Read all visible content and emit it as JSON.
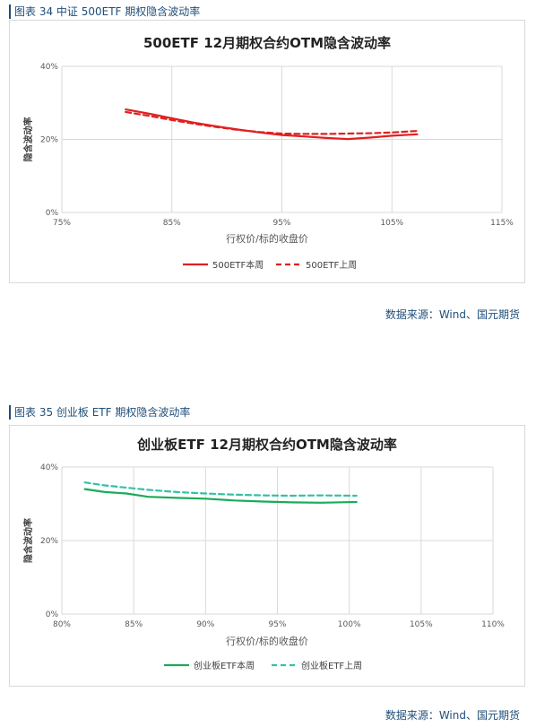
{
  "figures": [
    {
      "caption": "图表 34 中证 500ETF 期权隐含波动率",
      "source": "数据来源：Wind、国元期货"
    },
    {
      "caption": "图表 35 创业板 ETF 期权隐含波动率",
      "source": "数据来源：Wind、国元期货"
    }
  ],
  "colors": {
    "caption": "#1f4e79",
    "red": "#e02020",
    "green": "#1aab5a",
    "teal": "#33c1a6",
    "grid": "#d9d9d9"
  },
  "chart_data": [
    {
      "type": "line",
      "title": "500ETF 12月期权合约OTM隐含波动率",
      "xlabel": "行权价/标的收盘价",
      "ylabel": "隐含波动率",
      "xlim": [
        75,
        115
      ],
      "ylim": [
        0,
        40
      ],
      "xticks": [
        "75%",
        "85%",
        "95%",
        "105%",
        "115%"
      ],
      "yticks": [
        "0%",
        "20%",
        "40%"
      ],
      "grid": true,
      "legend_position": "bottom",
      "series": [
        {
          "name": "500ETF本周",
          "style": "solid",
          "color": "#e02020",
          "x": [
            80.8,
            83,
            85,
            87,
            89,
            91,
            93,
            95,
            97,
            99,
            101,
            103,
            105,
            107.3
          ],
          "y": [
            28.2,
            27.0,
            25.8,
            24.6,
            23.6,
            22.7,
            21.9,
            21.2,
            20.8,
            20.4,
            20.1,
            20.5,
            21.0,
            21.4
          ]
        },
        {
          "name": "500ETF上周",
          "style": "dashed",
          "color": "#e02020",
          "x": [
            80.8,
            83,
            85,
            87,
            89,
            91,
            93,
            95,
            97,
            99,
            101,
            103,
            105,
            107.3
          ],
          "y": [
            27.5,
            26.4,
            25.3,
            24.3,
            23.4,
            22.6,
            22.0,
            21.6,
            21.5,
            21.5,
            21.6,
            21.7,
            21.9,
            22.3
          ]
        }
      ]
    },
    {
      "type": "line",
      "title": "创业板ETF 12月期权合约OTM隐含波动率",
      "xlabel": "行权价/标的收盘价",
      "ylabel": "隐含波动率",
      "xlim": [
        80,
        110
      ],
      "ylim": [
        0,
        40
      ],
      "xticks": [
        "80%",
        "85%",
        "90%",
        "95%",
        "100%",
        "105%",
        "110%"
      ],
      "yticks": [
        "0%",
        "20%",
        "40%"
      ],
      "grid": true,
      "legend_position": "bottom",
      "series": [
        {
          "name": "创业板ETF本周",
          "style": "solid",
          "color": "#1aab5a",
          "x": [
            81.6,
            83,
            84.5,
            86,
            88,
            90,
            92,
            94,
            96,
            98,
            100.5
          ],
          "y": [
            34.0,
            33.2,
            32.8,
            31.9,
            31.6,
            31.4,
            30.9,
            30.6,
            30.4,
            30.3,
            30.5
          ]
        },
        {
          "name": "创业板ETF上周",
          "style": "dashed",
          "color": "#33c1a6",
          "x": [
            81.6,
            83,
            84.5,
            86,
            88,
            90,
            92,
            94,
            96,
            98,
            100.5
          ],
          "y": [
            35.8,
            35.0,
            34.4,
            33.8,
            33.2,
            32.8,
            32.5,
            32.3,
            32.2,
            32.3,
            32.2
          ]
        }
      ]
    }
  ]
}
